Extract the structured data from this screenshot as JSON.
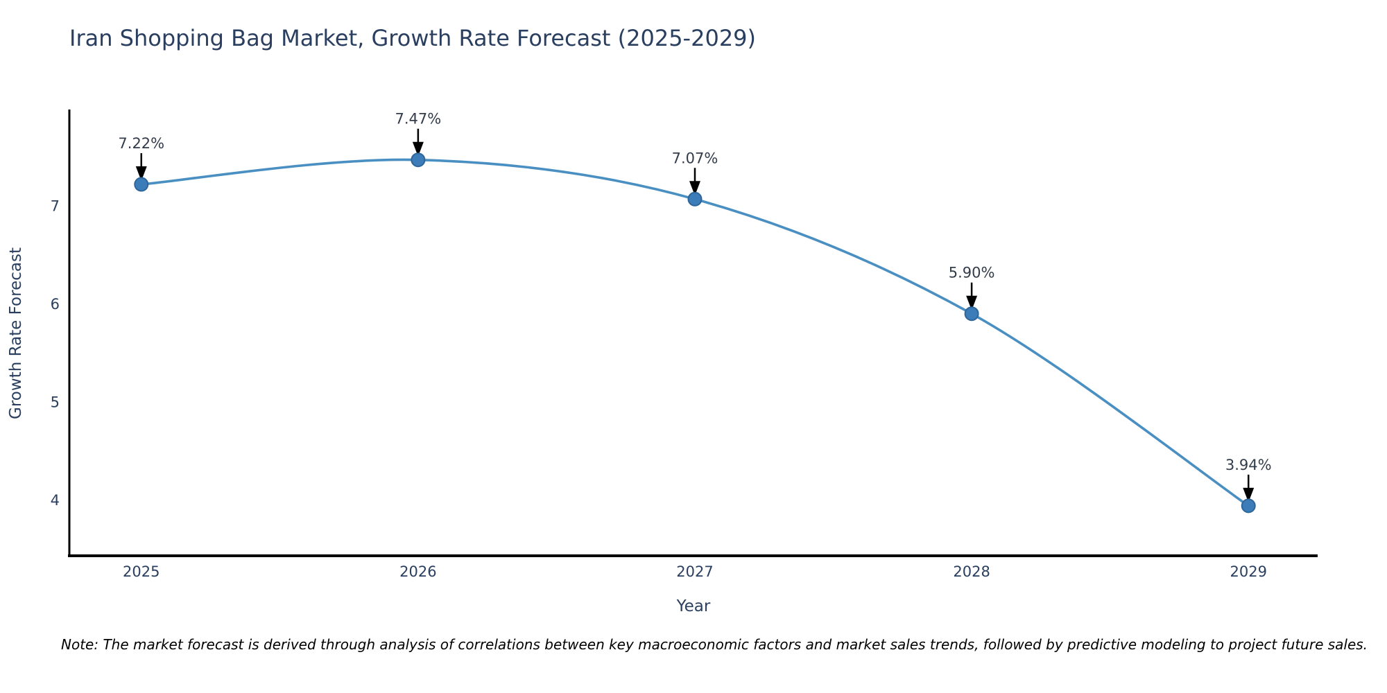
{
  "header": {
    "title": "Iran Shopping Bag Market, Growth Rate Forecast (2025-2029)"
  },
  "note": {
    "text": "Note: The market forecast is derived through analysis of correlations between key macroeconomic factors and market sales trends, followed by predictive modeling to project future sales."
  },
  "chart_data": {
    "type": "line",
    "title": "Iran Shopping Bag Market, Growth Rate Forecast (2025-2029)",
    "xlabel": "Year",
    "ylabel": "Growth Rate Forecast",
    "categories": [
      2025,
      2026,
      2027,
      2028,
      2029
    ],
    "series": [
      {
        "name": "Growth Rate Forecast",
        "values": [
          7.22,
          7.47,
          7.07,
          5.9,
          3.94
        ]
      }
    ],
    "point_labels": [
      "7.22%",
      "7.47%",
      "7.07%",
      "5.90%",
      "3.94%"
    ],
    "x_ticks": [
      "2025",
      "2026",
      "2027",
      "2028",
      "2029"
    ],
    "y_ticks": [
      4,
      5,
      6,
      7
    ],
    "x_range": [
      2024.74,
      2029.25
    ],
    "y_range": [
      3.43,
      7.97
    ],
    "line_shape": "spline",
    "grid": false,
    "legend_position": "none",
    "colors": {
      "line": "#4a8fc2",
      "marker": "#3c7cb8",
      "marker_edge": "#2f6699",
      "axis": "#000000",
      "tick_label": "#2a3f5f",
      "axis_title": "#2a3f5f",
      "annotation_text": "#333c4a",
      "annotation_arrow": "#000000",
      "title": "#2a3f5f",
      "background": "#ffffff"
    }
  }
}
